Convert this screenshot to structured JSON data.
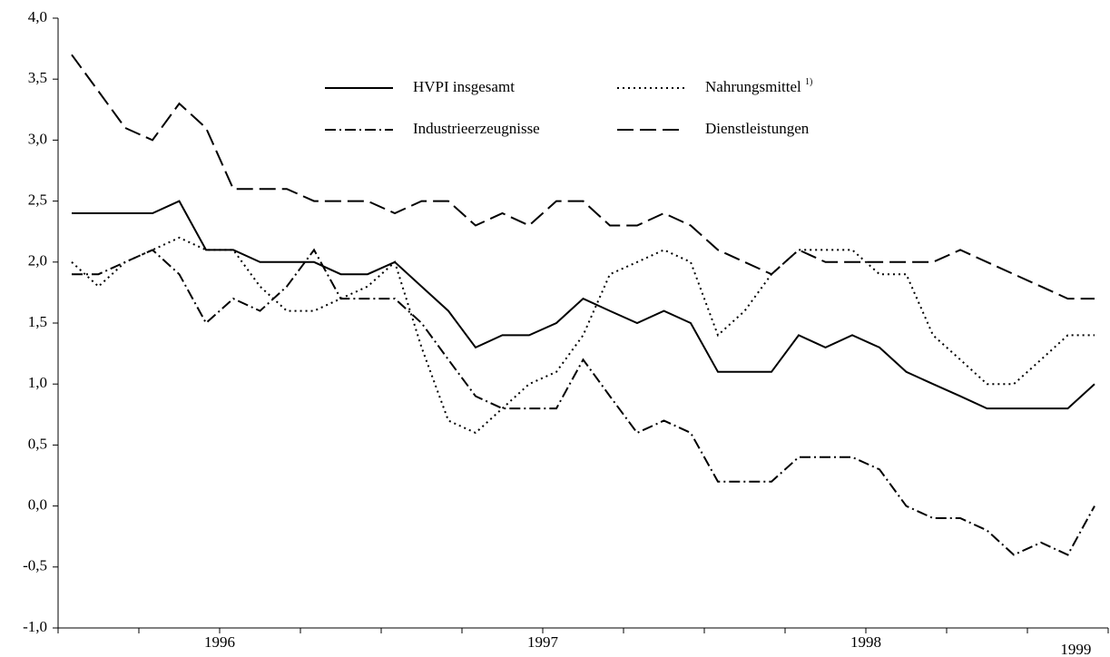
{
  "chart_data": {
    "type": "line",
    "x": [
      1996.042,
      1996.125,
      1996.208,
      1996.292,
      1996.375,
      1996.458,
      1996.542,
      1996.625,
      1996.708,
      1996.792,
      1996.875,
      1996.958,
      1997.042,
      1997.125,
      1997.208,
      1997.292,
      1997.375,
      1997.458,
      1997.542,
      1997.625,
      1997.708,
      1997.792,
      1997.875,
      1997.958,
      1998.042,
      1998.125,
      1998.208,
      1998.292,
      1998.375,
      1998.458,
      1998.542,
      1998.625,
      1998.708,
      1998.792,
      1998.875,
      1998.958,
      1999.042,
      1999.125,
      1999.208
    ],
    "series": [
      {
        "name": "HVPI insgesamt",
        "color": "#000000",
        "style": "solid",
        "values": [
          2.4,
          2.4,
          2.4,
          2.4,
          2.5,
          2.1,
          2.1,
          2.0,
          2.0,
          2.0,
          1.9,
          1.9,
          2.0,
          1.8,
          1.6,
          1.3,
          1.4,
          1.4,
          1.5,
          1.7,
          1.6,
          1.5,
          1.6,
          1.5,
          1.1,
          1.1,
          1.1,
          1.4,
          1.3,
          1.4,
          1.3,
          1.1,
          1.0,
          0.9,
          0.8,
          0.8,
          0.8,
          0.8,
          1.0
        ]
      },
      {
        "name": "Nahrungsmittel",
        "footnote": "1)",
        "color": "#000000",
        "style": "dotted",
        "values": [
          2.0,
          1.8,
          2.0,
          2.1,
          2.2,
          2.1,
          2.1,
          1.8,
          1.6,
          1.6,
          1.7,
          1.8,
          2.0,
          1.3,
          0.7,
          0.6,
          0.8,
          1.0,
          1.1,
          1.4,
          1.9,
          2.0,
          2.1,
          2.0,
          1.4,
          1.6,
          1.9,
          2.1,
          2.1,
          2.1,
          1.9,
          1.9,
          1.4,
          1.2,
          1.0,
          1.0,
          1.2,
          1.4,
          1.4
        ]
      },
      {
        "name": "Industrieerzeugnisse",
        "color": "#000000",
        "style": "dashdot",
        "values": [
          1.9,
          1.9,
          2.0,
          2.1,
          1.9,
          1.5,
          1.7,
          1.6,
          1.8,
          2.1,
          1.7,
          1.7,
          1.7,
          1.5,
          1.2,
          0.9,
          0.8,
          0.8,
          0.8,
          1.2,
          0.9,
          0.6,
          0.7,
          0.6,
          0.2,
          0.2,
          0.2,
          0.4,
          0.4,
          0.4,
          0.3,
          0.0,
          -0.1,
          -0.1,
          -0.2,
          -0.4,
          -0.3,
          -0.4,
          0.0
        ]
      },
      {
        "name": "Dienstleistungen",
        "color": "#000000",
        "style": "dashed",
        "values": [
          3.7,
          3.4,
          3.1,
          3.0,
          3.3,
          3.1,
          2.6,
          2.6,
          2.6,
          2.5,
          2.5,
          2.5,
          2.4,
          2.5,
          2.5,
          2.3,
          2.4,
          2.3,
          2.5,
          2.5,
          2.3,
          2.3,
          2.4,
          2.3,
          2.1,
          2.0,
          1.9,
          2.1,
          2.0,
          2.0,
          2.0,
          2.0,
          2.0,
          2.1,
          2.0,
          1.9,
          1.8,
          1.7,
          1.7
        ]
      }
    ],
    "xlim": [
      1996,
      1999.25
    ],
    "xticks": [
      1996,
      1996.25,
      1996.5,
      1996.75,
      1997,
      1997.25,
      1997.5,
      1997.75,
      1998,
      1998.25,
      1998.5,
      1998.75,
      1999,
      1999.25
    ],
    "xlabels": [
      {
        "value": 1996.5,
        "label": "1996"
      },
      {
        "value": 1997.5,
        "label": "1997"
      },
      {
        "value": 1998.5,
        "label": "1998"
      },
      {
        "value": 1999.15,
        "label": "1999"
      }
    ],
    "ylim": [
      -1,
      4
    ],
    "yticks": [
      {
        "value": -1,
        "label": "-1,0"
      },
      {
        "value": -0.5,
        "label": "-0,5"
      },
      {
        "value": 0,
        "label": "0,0"
      },
      {
        "value": 0.5,
        "label": "0,5"
      },
      {
        "value": 1,
        "label": "1,0"
      },
      {
        "value": 1.5,
        "label": "1,5"
      },
      {
        "value": 2,
        "label": "2,0"
      },
      {
        "value": 2.5,
        "label": "2,5"
      },
      {
        "value": 3,
        "label": "3,0"
      },
      {
        "value": 3.5,
        "label": "3,5"
      },
      {
        "value": 4,
        "label": "4,0"
      }
    ],
    "grid": false,
    "legend": "top"
  }
}
